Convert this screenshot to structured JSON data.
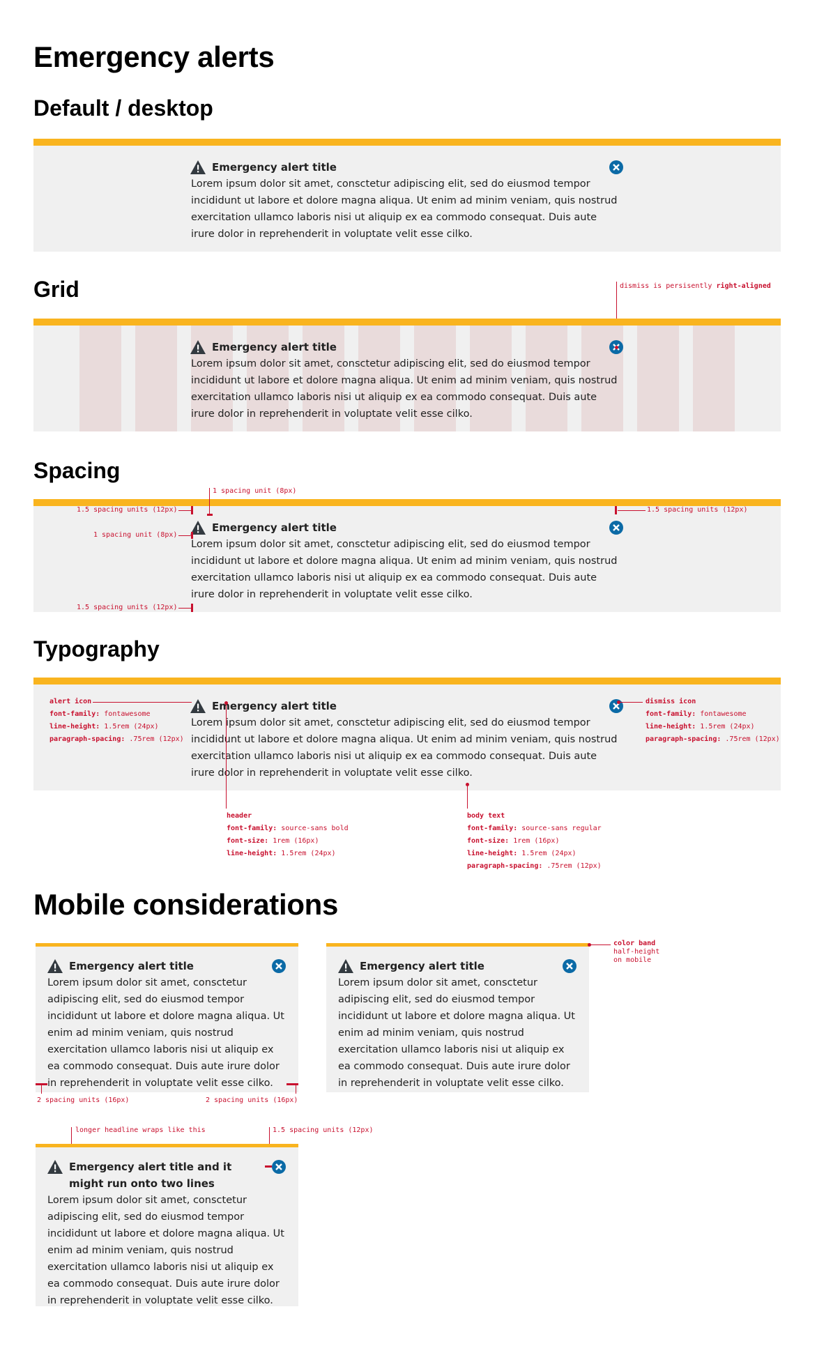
{
  "page": {
    "title": "Emergency alerts",
    "sections": {
      "default": "Default / desktop",
      "grid": "Grid",
      "spacing": "Spacing",
      "typography": "Typography",
      "mobile": "Mobile considerations"
    }
  },
  "alert": {
    "title": "Emergency alert title",
    "long_title": "Emergency alert title and it might run onto two lines",
    "body": "Lorem ipsum dolor sit amet, consctetur adipiscing elit, sed do eiusmod tempor incididunt ut labore et dolore magna aliqua. Ut enim ad minim veniam, quis nostrud exercitation ullamco laboris nisi ut aliquip ex ea commodo consequat. Duis aute irure dolor in reprehenderit in voluptate velit esse cilko.",
    "icons": {
      "alert": "warning-triangle-icon",
      "dismiss": "close-circle-icon"
    },
    "colors": {
      "band": "#f9b41f",
      "background": "#f0f0f0",
      "dismiss": "#0b6aa6",
      "annotation": "#c8102e"
    }
  },
  "annotations": {
    "grid_dismiss_prefix": "dismiss is persisently",
    "grid_dismiss_emph": "right-aligned",
    "one_unit_8": "1 spacing unit (8px)",
    "one_half_units_12": "1.5 spacing units (12px)",
    "two_units_16": "2 spacing units (16px)",
    "longer_headline": "longer headline wraps like this",
    "color_band": "color band",
    "half_height": "half-height",
    "on_mobile": "on mobile"
  },
  "typography_specs": {
    "alert_icon": {
      "title": "alert icon",
      "k1": "font-family:",
      "v1": "fontawesome",
      "k2": "line-height:",
      "v2": "1.5rem (24px)",
      "k3": "paragraph-spacing:",
      "v3": ".75rem (12px)"
    },
    "dismiss_icon": {
      "title": "dismiss icon",
      "k1": "font-family:",
      "v1": "fontawesome",
      "k2": "line-height:",
      "v2": "1.5rem (24px)",
      "k3": "paragraph-spacing:",
      "v3": ".75rem (12px)"
    },
    "header": {
      "title": "header",
      "k1": "font-family:",
      "v1": "source-sans bold",
      "k2": "font-size:",
      "v2": "1rem (16px)",
      "k3": "line-height:",
      "v3": "1.5rem (24px)"
    },
    "body_text": {
      "title": "body text",
      "k1": "font-family:",
      "v1": "source-sans regular",
      "k2": "font-size:",
      "v2": "1rem (16px)",
      "k3": "line-height:",
      "v3": "1.5rem (24px)",
      "k4": "paragraph-spacing:",
      "v4": ".75rem (12px)"
    }
  }
}
